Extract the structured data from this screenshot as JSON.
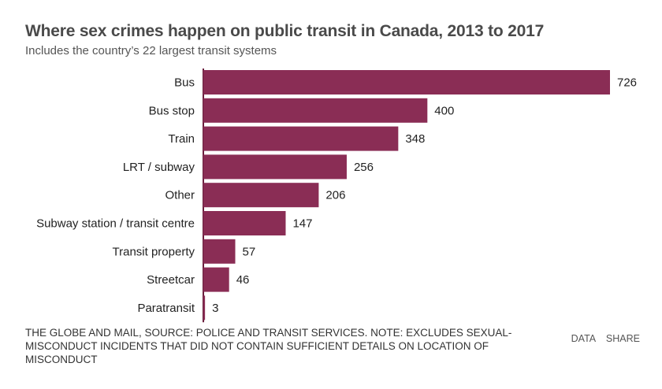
{
  "header": {
    "title": "Where sex crimes happen on public transit in Canada, 2013 to 2017",
    "subtitle": "Includes the country’s 22 largest transit systems"
  },
  "footer": {
    "note": "The Globe and Mail, Source: police and transit services. Note: Excludes sexual-misconduct incidents that did not contain sufficient details on location of misconduct",
    "data_label": "DATA",
    "share_label": "SHARE"
  },
  "colors": {
    "bar": "#8a2d55",
    "axis": "#6a1f3d"
  },
  "chart_data": {
    "type": "bar",
    "orientation": "horizontal",
    "title": "Where sex crimes happen on public transit in Canada, 2013 to 2017",
    "subtitle": "Includes the country’s 22 largest transit systems",
    "categories": [
      "Bus",
      "Bus stop",
      "Train",
      "LRT / subway",
      "Other",
      "Subway station / transit centre",
      "Transit property",
      "Streetcar",
      "Paratransit"
    ],
    "values": [
      726,
      400,
      348,
      256,
      206,
      147,
      57,
      46,
      3
    ],
    "xlim": [
      0,
      726
    ],
    "grid": false,
    "data_labels": true
  }
}
